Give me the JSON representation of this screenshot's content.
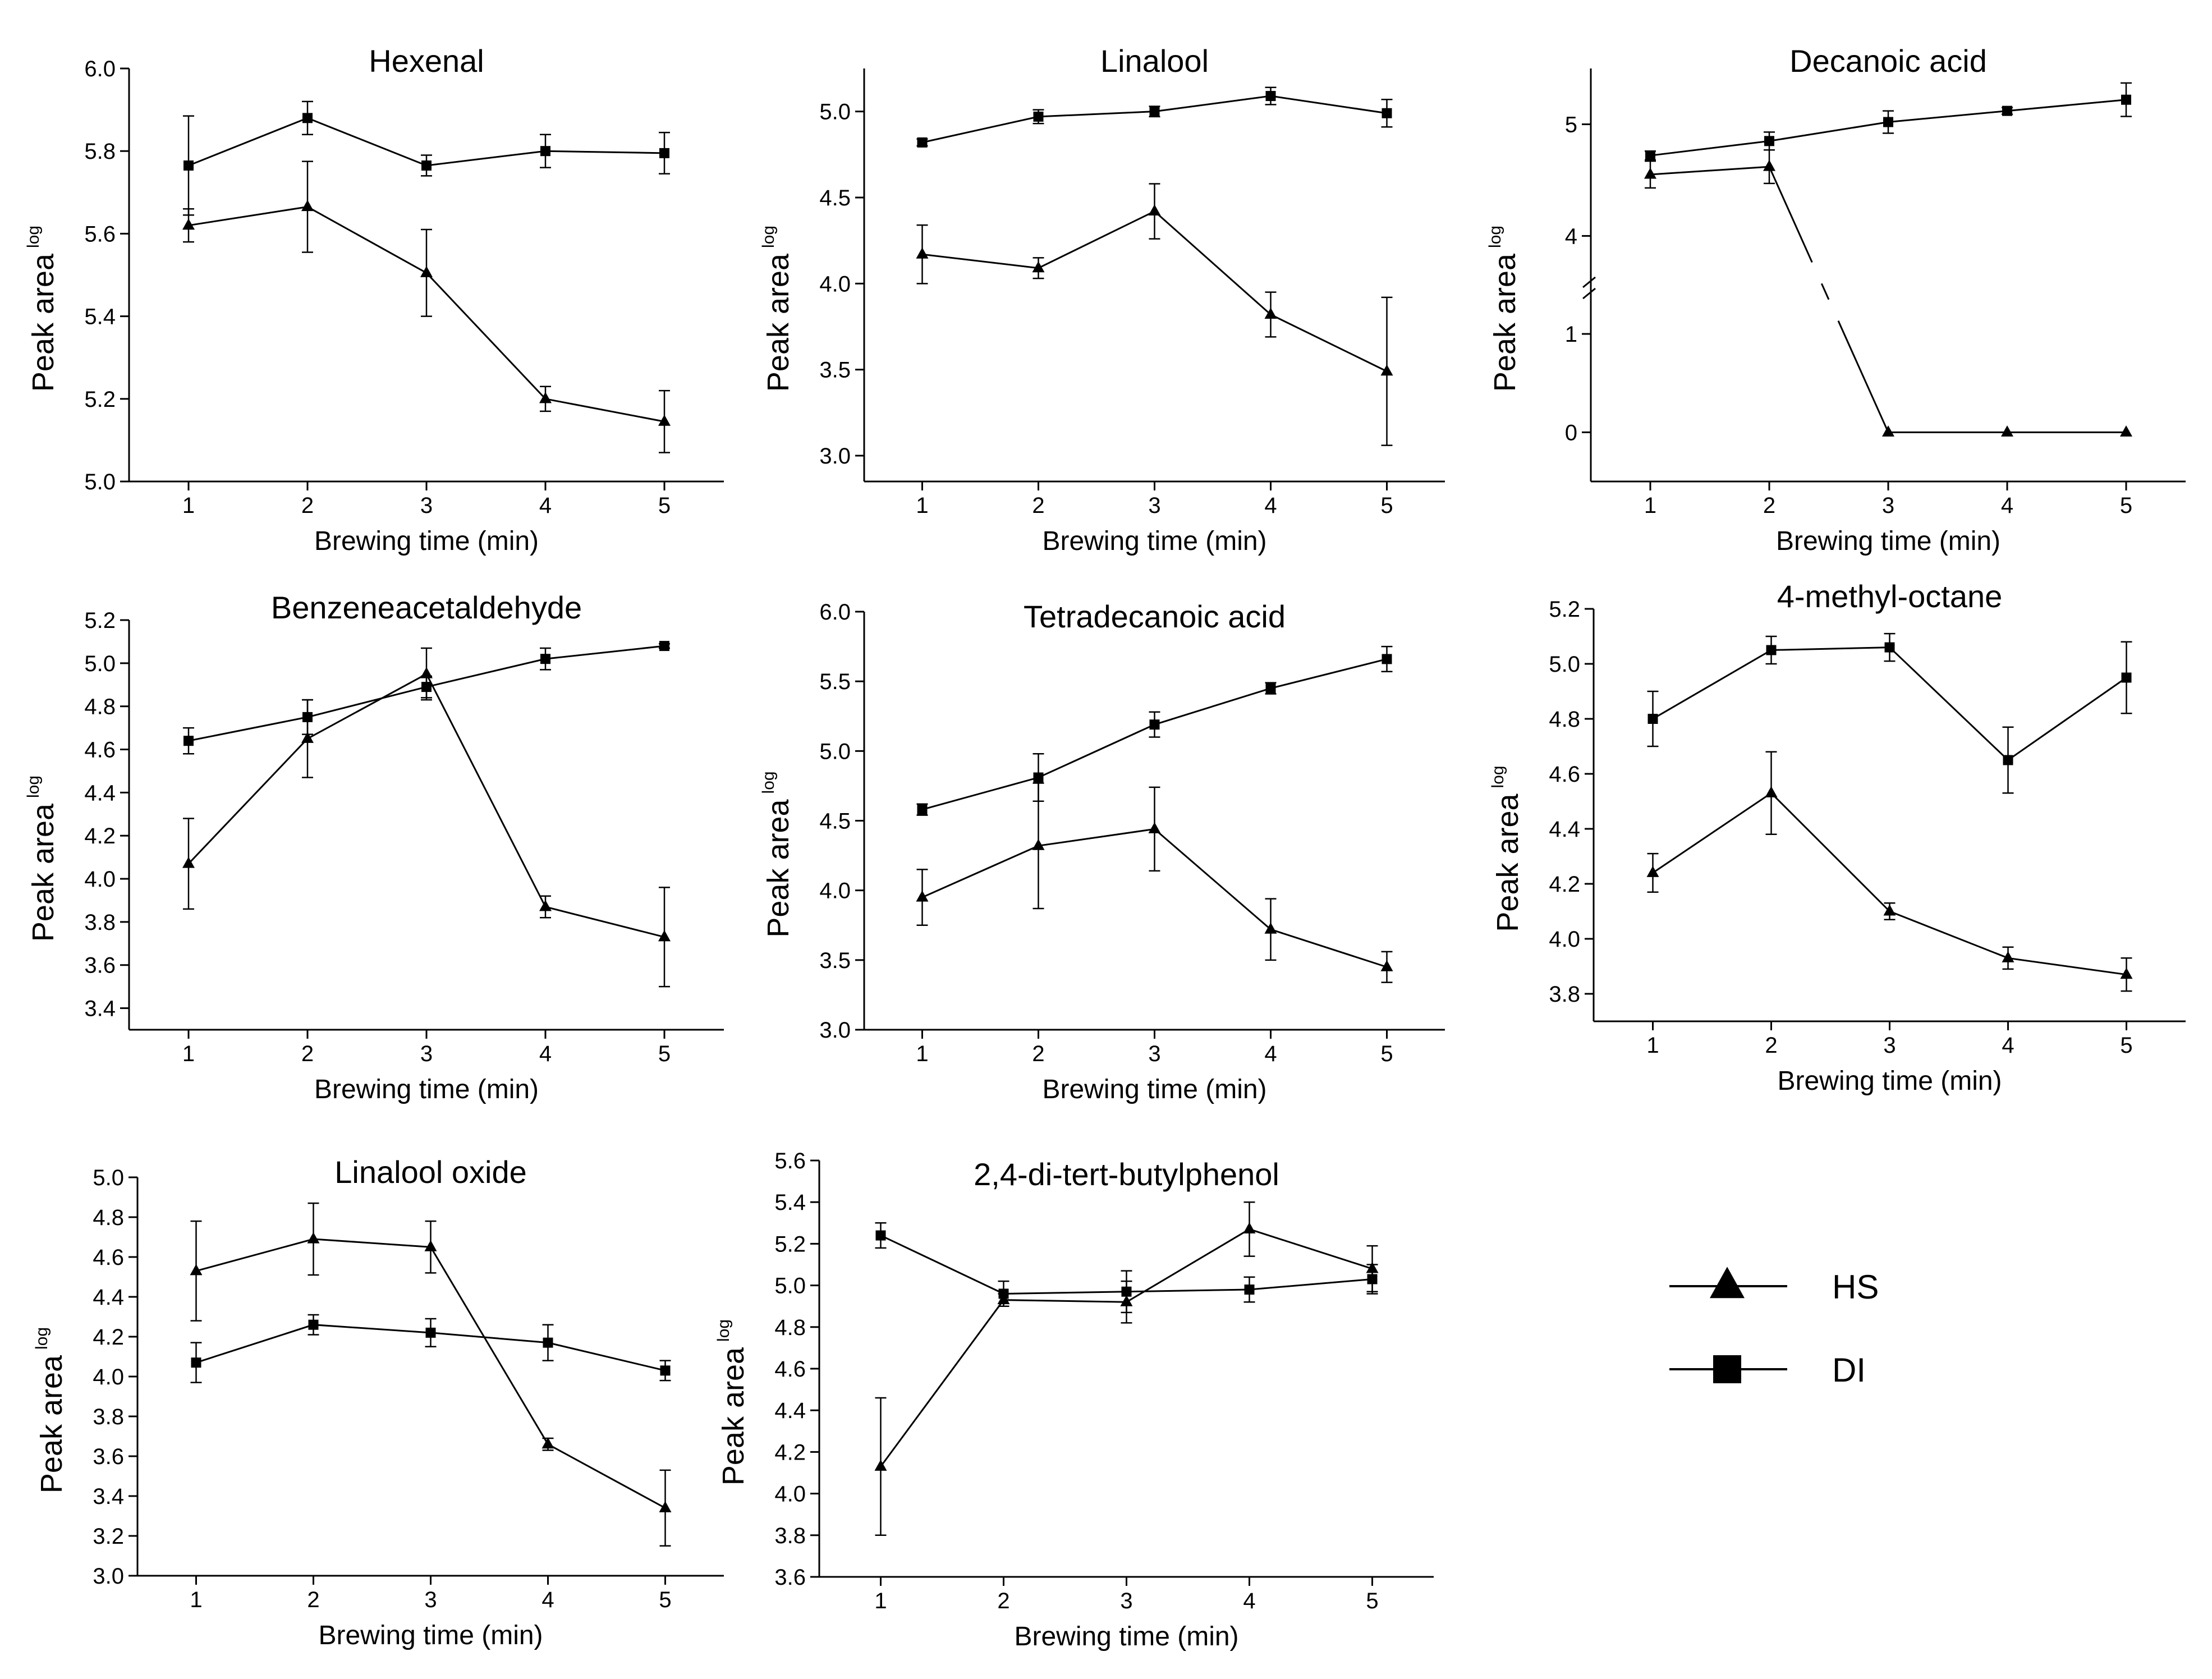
{
  "figure_legend": {
    "entries": [
      {
        "label": "HS",
        "marker": "triangle"
      },
      {
        "label": "DI",
        "marker": "square"
      }
    ]
  },
  "chart_data": [
    {
      "type": "line",
      "title": "Hexenal",
      "xlabel": "Brewing time (min)",
      "ylabel": "Peak area",
      "ylabel_superscript": "log",
      "x": [
        1,
        2,
        3,
        4,
        5
      ],
      "xticks": [
        "1",
        "2",
        "3",
        "4",
        "5"
      ],
      "ylim": [
        5.0,
        6.0
      ],
      "yticks": [
        5.0,
        5.2,
        5.4,
        5.6,
        5.8,
        6.0
      ],
      "ytick_labels": [
        "5.0",
        "5.2",
        "5.4",
        "5.6",
        "5.8",
        "6.0"
      ],
      "series": [
        {
          "name": "HS",
          "marker": "triangle",
          "values": [
            5.62,
            5.665,
            5.505,
            5.2,
            5.145
          ],
          "errors": [
            0.04,
            0.11,
            0.105,
            0.03,
            0.075
          ]
        },
        {
          "name": "DI",
          "marker": "square",
          "values": [
            5.765,
            5.88,
            5.765,
            5.8,
            5.795
          ],
          "errors": [
            0.12,
            0.04,
            0.025,
            0.04,
            0.05
          ]
        }
      ]
    },
    {
      "type": "line",
      "title": "Linalool",
      "xlabel": "Brewing time (min)",
      "ylabel": "Peak area",
      "ylabel_superscript": "log",
      "x": [
        1,
        2,
        3,
        4,
        5
      ],
      "xticks": [
        "1",
        "2",
        "3",
        "4",
        "5"
      ],
      "ylim": [
        2.85,
        5.25
      ],
      "yticks": [
        3.0,
        3.5,
        4.0,
        4.5,
        5.0
      ],
      "ytick_labels": [
        "3.0",
        "3.5",
        "4.0",
        "4.5",
        "5.0"
      ],
      "series": [
        {
          "name": "HS",
          "marker": "triangle",
          "values": [
            4.17,
            4.09,
            4.42,
            3.82,
            3.49
          ],
          "errors": [
            0.17,
            0.06,
            0.16,
            0.13,
            0.43
          ]
        },
        {
          "name": "DI",
          "marker": "square",
          "values": [
            4.82,
            4.97,
            5.0,
            5.09,
            4.99
          ],
          "errors": [
            0.02,
            0.04,
            0.03,
            0.05,
            0.08
          ]
        }
      ]
    },
    {
      "type": "line",
      "title": "Decanoic acid",
      "xlabel": "Brewing time (min)",
      "ylabel": "Peak area",
      "ylabel_superscript": "log",
      "x": [
        1,
        2,
        3,
        4,
        5
      ],
      "xticks": [
        "1",
        "2",
        "3",
        "4",
        "5"
      ],
      "broken_axis": true,
      "yticks": [
        0,
        1,
        4,
        5
      ],
      "ytick_labels": [
        "0",
        "1",
        "4",
        "5"
      ],
      "series": [
        {
          "name": "HS",
          "marker": "triangle",
          "values": [
            4.55,
            4.62,
            0,
            0,
            0
          ],
          "errors": [
            0.12,
            0.15,
            0,
            0,
            0
          ]
        },
        {
          "name": "DI",
          "marker": "square",
          "values": [
            4.72,
            4.85,
            5.02,
            5.12,
            5.22
          ],
          "errors": [
            0.04,
            0.08,
            0.1,
            0.03,
            0.15
          ]
        }
      ]
    },
    {
      "type": "line",
      "title": "Benzeneacetaldehyde",
      "xlabel": "Brewing time (min)",
      "ylabel": "Peak area",
      "ylabel_superscript": "log",
      "x": [
        1,
        2,
        3,
        4,
        5
      ],
      "xticks": [
        "1",
        "2",
        "3",
        "4",
        "5"
      ],
      "ylim": [
        3.3,
        5.2
      ],
      "yticks": [
        3.4,
        3.6,
        3.8,
        4.0,
        4.2,
        4.4,
        4.6,
        4.8,
        5.0,
        5.2
      ],
      "ytick_labels": [
        "3.4",
        "3.6",
        "3.8",
        "4.0",
        "4.2",
        "4.4",
        "4.6",
        "4.8",
        "5.0",
        "5.2"
      ],
      "series": [
        {
          "name": "HS",
          "marker": "triangle",
          "values": [
            4.07,
            4.65,
            4.95,
            3.87,
            3.73
          ],
          "errors": [
            0.21,
            0.18,
            0.12,
            0.05,
            0.23
          ]
        },
        {
          "name": "DI",
          "marker": "square",
          "values": [
            4.64,
            4.75,
            4.89,
            5.02,
            5.08
          ],
          "errors": [
            0.06,
            0.08,
            0.05,
            0.05,
            0.01
          ]
        }
      ]
    },
    {
      "type": "line",
      "title": "Tetradecanoic acid",
      "xlabel": "Brewing time (min)",
      "ylabel": "Peak area",
      "ylabel_superscript": "log",
      "x": [
        1,
        2,
        3,
        4,
        5
      ],
      "xticks": [
        "1",
        "2",
        "3",
        "4",
        "5"
      ],
      "ylim": [
        3.0,
        6.0
      ],
      "yticks": [
        3.0,
        3.5,
        4.0,
        4.5,
        5.0,
        5.5,
        6.0
      ],
      "ytick_labels": [
        "3.0",
        "3.5",
        "4.0",
        "4.5",
        "5.0",
        "5.5",
        "6.0"
      ],
      "series": [
        {
          "name": "HS",
          "marker": "triangle",
          "values": [
            3.95,
            4.32,
            4.44,
            3.72,
            3.45
          ],
          "errors": [
            0.2,
            0.45,
            0.3,
            0.22,
            0.11
          ]
        },
        {
          "name": "DI",
          "marker": "square",
          "values": [
            4.58,
            4.81,
            5.19,
            5.45,
            5.66
          ],
          "errors": [
            0.04,
            0.17,
            0.09,
            0.04,
            0.09
          ]
        }
      ]
    },
    {
      "type": "line",
      "title": "4-methyl-octane",
      "xlabel": "Brewing time (min)",
      "ylabel": "Peak area",
      "ylabel_superscript": "log",
      "x": [
        1,
        2,
        3,
        4,
        5
      ],
      "xticks": [
        "1",
        "2",
        "3",
        "4",
        "5"
      ],
      "ylim": [
        3.7,
        5.2
      ],
      "yticks": [
        3.8,
        4.0,
        4.2,
        4.4,
        4.6,
        4.8,
        5.0,
        5.2
      ],
      "ytick_labels": [
        "3.8",
        "4.0",
        "4.2",
        "4.4",
        "4.6",
        "4.8",
        "5.0",
        "5.2"
      ],
      "series": [
        {
          "name": "HS",
          "marker": "triangle",
          "values": [
            4.24,
            4.53,
            4.1,
            3.93,
            3.87
          ],
          "errors": [
            0.07,
            0.15,
            0.03,
            0.04,
            0.06
          ]
        },
        {
          "name": "DI",
          "marker": "square",
          "values": [
            4.8,
            5.05,
            5.06,
            4.65,
            4.95
          ],
          "errors": [
            0.1,
            0.05,
            0.05,
            0.12,
            0.13
          ]
        }
      ]
    },
    {
      "type": "line",
      "title": "Linalool oxide",
      "xlabel": "Brewing time (min)",
      "ylabel": "Peak area",
      "ylabel_superscript": "log",
      "x": [
        1,
        2,
        3,
        4,
        5
      ],
      "xticks": [
        "1",
        "2",
        "3",
        "4",
        "5"
      ],
      "ylim": [
        3.0,
        5.0
      ],
      "yticks": [
        3.0,
        3.2,
        3.4,
        3.6,
        3.8,
        4.0,
        4.2,
        4.4,
        4.6,
        4.8,
        5.0
      ],
      "ytick_labels": [
        "3.0",
        "3.2",
        "3.4",
        "3.6",
        "3.8",
        "4.0",
        "4.2",
        "4.4",
        "4.6",
        "4.8",
        "5.0"
      ],
      "series": [
        {
          "name": "HS",
          "marker": "triangle",
          "values": [
            4.53,
            4.69,
            4.65,
            3.66,
            3.34
          ],
          "errors": [
            0.25,
            0.18,
            0.13,
            0.03,
            0.19
          ]
        },
        {
          "name": "DI",
          "marker": "square",
          "values": [
            4.07,
            4.26,
            4.22,
            4.17,
            4.03
          ],
          "errors": [
            0.1,
            0.05,
            0.07,
            0.09,
            0.05
          ]
        }
      ]
    },
    {
      "type": "line",
      "title": "2,4-di-tert-butylphenol",
      "xlabel": "Brewing time (min)",
      "ylabel": "Peak area",
      "ylabel_superscript": "log",
      "x": [
        1,
        2,
        3,
        4,
        5
      ],
      "xticks": [
        "1",
        "2",
        "3",
        "4",
        "5"
      ],
      "ylim": [
        3.6,
        5.6
      ],
      "yticks": [
        3.6,
        3.8,
        4.0,
        4.2,
        4.4,
        4.6,
        4.8,
        5.0,
        5.2,
        5.4,
        5.6
      ],
      "ytick_labels": [
        "3.6",
        "3.8",
        "4.0",
        "4.2",
        "4.4",
        "4.6",
        "4.8",
        "5.0",
        "5.2",
        "5.4",
        "5.6"
      ],
      "series": [
        {
          "name": "HS",
          "marker": "triangle",
          "values": [
            4.13,
            4.93,
            4.92,
            5.27,
            5.08
          ],
          "errors": [
            0.33,
            0.03,
            0.1,
            0.13,
            0.11
          ]
        },
        {
          "name": "DI",
          "marker": "square",
          "values": [
            5.24,
            4.96,
            4.97,
            4.98,
            5.03
          ],
          "errors": [
            0.06,
            0.06,
            0.1,
            0.06,
            0.07
          ]
        }
      ]
    }
  ]
}
